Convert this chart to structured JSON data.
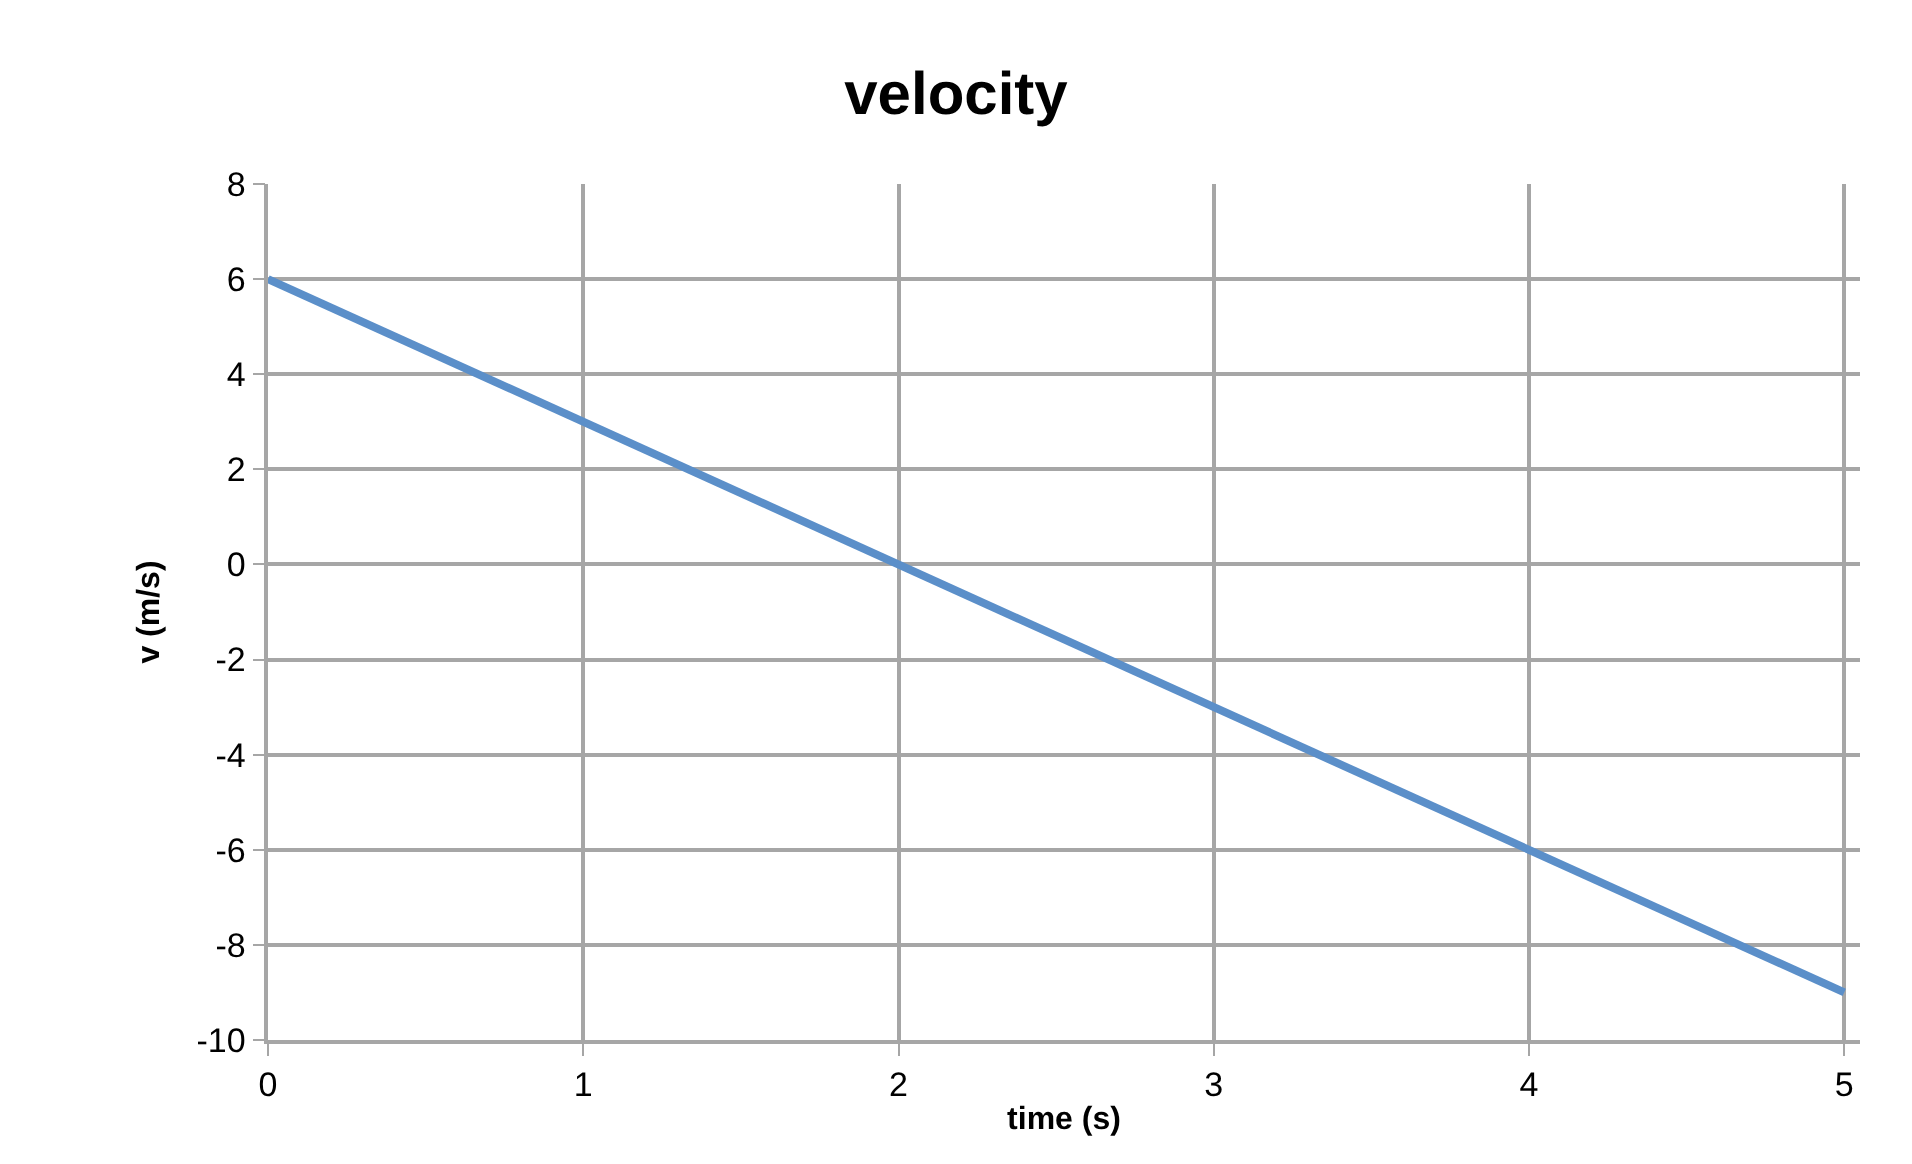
{
  "chart_data": {
    "type": "line",
    "title": "velocity",
    "xlabel": "time (s)",
    "ylabel": "v (m/s)",
    "x": [
      0,
      5
    ],
    "series": [
      {
        "color": "#5b8fc9",
        "values": [
          6,
          -9
        ]
      }
    ],
    "xlim": [
      0,
      5.05
    ],
    "xticks": [
      0,
      1,
      2,
      3,
      4,
      5
    ],
    "ylim": [
      -10,
      8
    ],
    "yticks": [
      -10,
      -8,
      -6,
      -4,
      -2,
      0,
      2,
      4,
      6,
      8
    ],
    "grid": true,
    "marker": "none",
    "line_style": "solid"
  }
}
